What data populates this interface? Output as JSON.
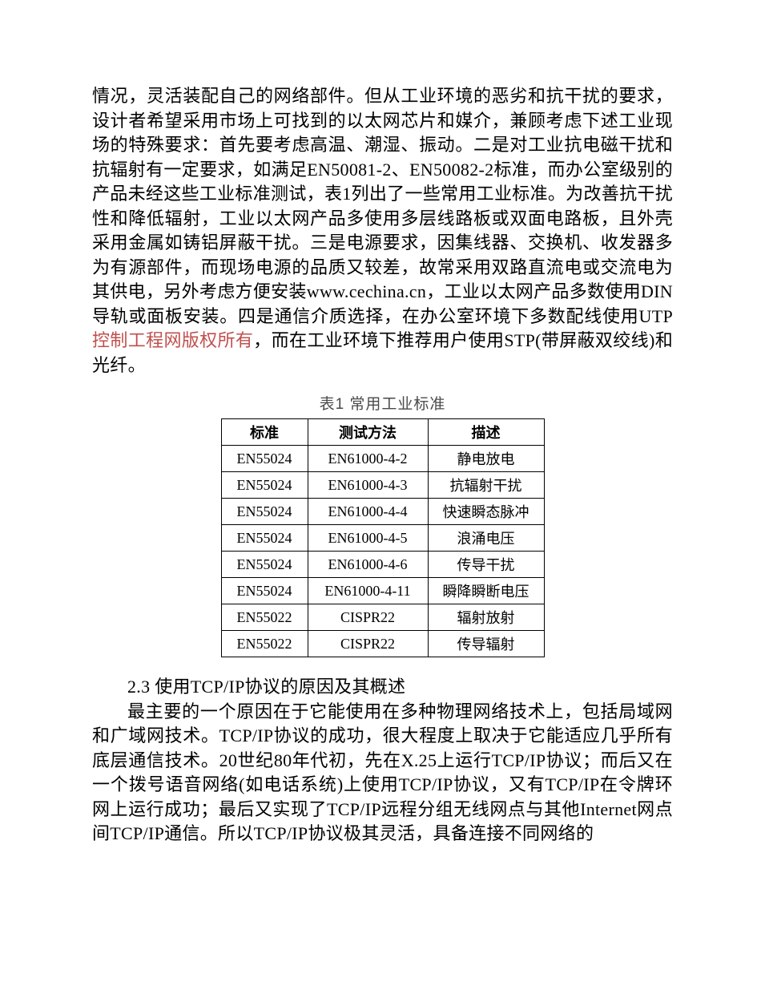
{
  "para1_text": "情况，灵活装配自己的网络部件。但从工业环境的恶劣和抗干扰的要求，设计者希望采用市场上可找到的以太网芯片和媒介，兼顾考虑下述工业现场的特殊要求：首先要考虑高温、潮湿、振动。二是对工业抗电磁干扰和抗辐射有一定要求，如满足EN50081-2、EN50082-2标准，而办公室级别的产品未经这些工业标准测试，表1列出了一些常用工业标准。为改善抗干扰性和降低辐射，工业以太网产品多使用多层线路板或双面电路板，且外壳采用金属如铸铝屏蔽干扰。三是电源要求，因集线器、交换机、收发器多为有源部件，而现场电源的品质又较差，故常采用双路直流电或交流电为其供电，另外考虑方便安装www.cechina.cn，工业以太网产品多数使用DIN导轨或面板安装。四是通信介质选择，在办公室环境下多数配线使用UTP",
  "para1_link": "控制工程网版权所有",
  "para1_tail": "，而在工业环境下推荐用户使用STP(带屏蔽双绞线)和光纤。",
  "table": {
    "title": "表1   常用工业标准",
    "headers": [
      "标准",
      "测试方法",
      "描述"
    ],
    "col_widths": [
      "col1",
      "col2",
      "col3"
    ],
    "rows": [
      [
        "EN55024",
        "EN61000-4-2",
        "静电放电"
      ],
      [
        "EN55024",
        "EN61000-4-3",
        "抗辐射干扰"
      ],
      [
        "EN55024",
        "EN61000-4-4",
        "快速瞬态脉冲"
      ],
      [
        "EN55024",
        "EN61000-4-5",
        "浪涌电压"
      ],
      [
        "EN55024",
        "EN61000-4-6",
        "传导干扰"
      ],
      [
        "EN55024",
        "EN61000-4-11",
        "瞬降瞬断电压"
      ],
      [
        "EN55022",
        "CISPR22",
        "辐射放射"
      ],
      [
        "EN55022",
        "CISPR22",
        "传导辐射"
      ]
    ]
  },
  "heading": "2.3 使用TCP/IP协议的原因及其概述",
  "para2": "最主要的一个原因在于它能使用在多种物理网络技术上，包括局域网和广域网技术。TCP/IP协议的成功，很大程度上取决于它能适应几乎所有底层通信技术。20世纪80年代初，先在X.25上运行TCP/IP协议；而后又在一个拨号语音网络(如电话系统)上使用TCP/IP协议，又有TCP/IP在令牌环网上运行成功；最后又实现了TCP/IP远程分组无线网点与其他Internet网点间TCP/IP通信。所以TCP/IP协议极其灵活，具备连接不同网络的"
}
